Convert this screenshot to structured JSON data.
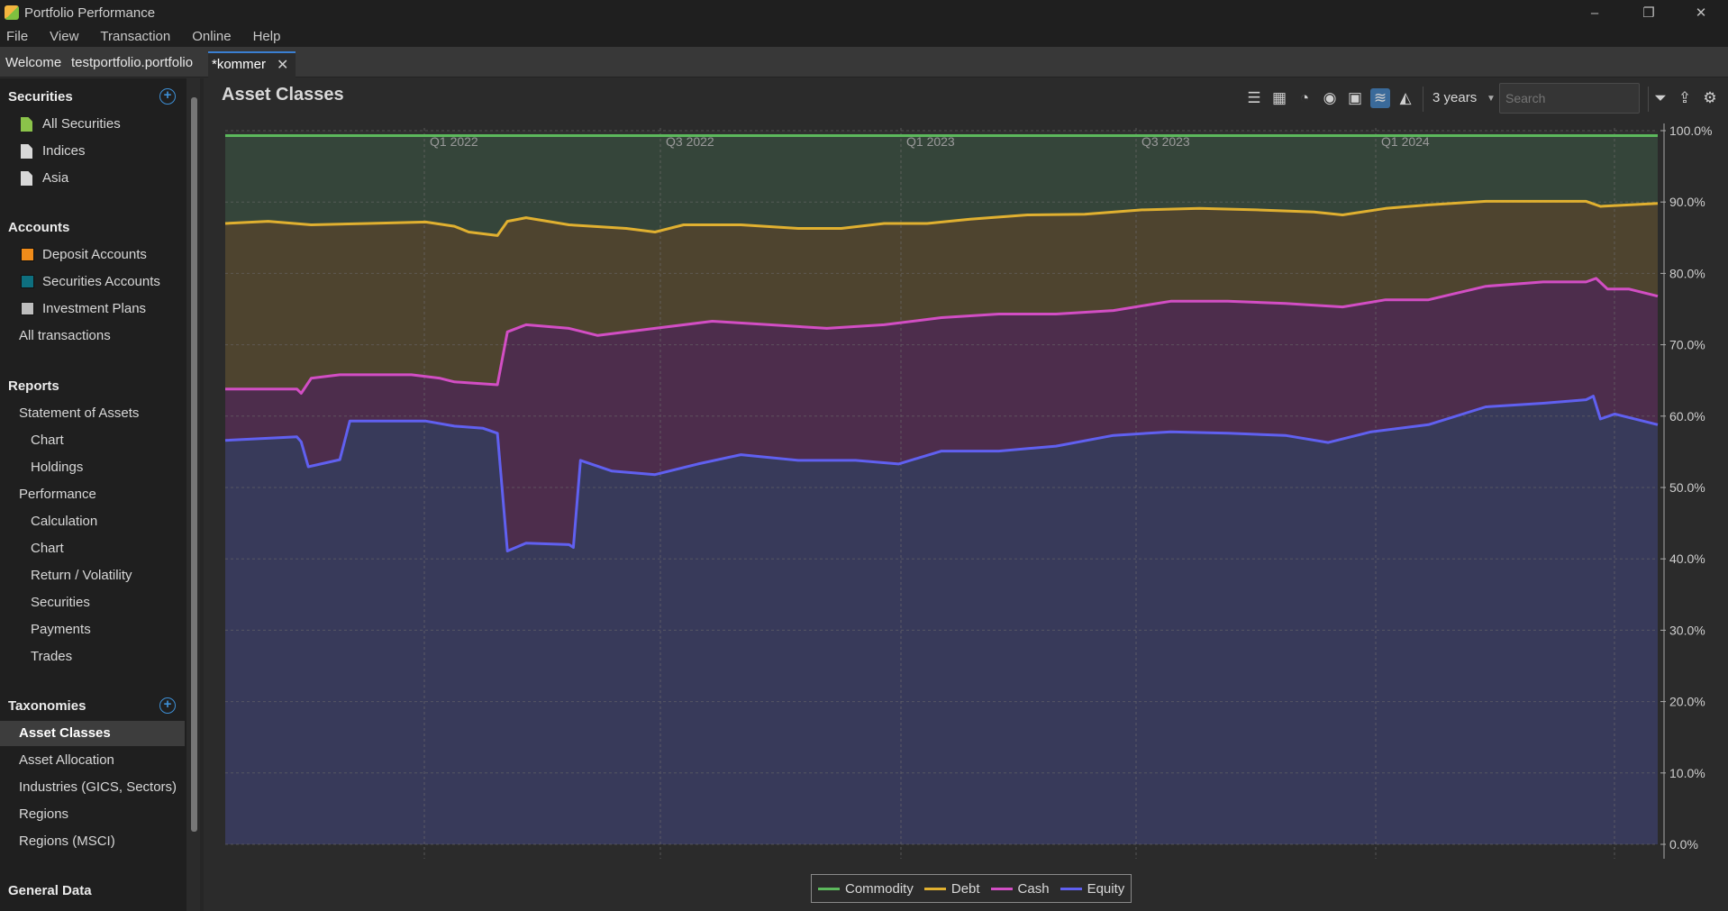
{
  "window": {
    "title": "Portfolio Performance",
    "controls": [
      "–",
      "❐",
      "✕"
    ]
  },
  "menu": [
    "File",
    "View",
    "Transaction",
    "Online",
    "Help"
  ],
  "tabs": {
    "welcome": "Welcome",
    "portfolio": "testportfolio.portfolio",
    "active": "*kommer"
  },
  "sidebar": {
    "securities_header": "Securities",
    "securities": [
      "All Securities",
      "Indices",
      "Asia"
    ],
    "accounts_header": "Accounts",
    "accounts": [
      "Deposit Accounts",
      "Securities Accounts",
      "Investment Plans"
    ],
    "account_colors": [
      "#f08c1a",
      "#0e6f7f",
      "#bdbdbd"
    ],
    "all_transactions": "All transactions",
    "reports_header": "Reports",
    "statement": "Statement of Assets",
    "statement_children": [
      "Chart",
      "Holdings"
    ],
    "performance": "Performance",
    "performance_children": [
      "Calculation",
      "Chart",
      "Return / Volatility",
      "Securities",
      "Payments",
      "Trades"
    ],
    "taxonomies_header": "Taxonomies",
    "taxonomies": [
      "Asset Classes",
      "Asset Allocation",
      "Industries (GICS, Sectors)",
      "Regions",
      "Regions (MSCI)"
    ],
    "general_header": "General Data"
  },
  "toolbar": {
    "title": "Asset Classes",
    "period": "3 years",
    "search_placeholder": "Search",
    "icons": [
      "list-icon",
      "treemap-icon",
      "pie-icon",
      "donut-icon",
      "grid-icon",
      "stacked-area-icon",
      "area-chart-icon",
      "filter-icon",
      "export-icon",
      "settings-icon"
    ]
  },
  "chart_data": {
    "type": "area",
    "stacked": true,
    "percent": true,
    "quarter_labels": [
      "Q1 2022",
      "Q3 2022",
      "Q1 2023",
      "Q3 2023",
      "Q1 2024"
    ],
    "y_ticks": [
      "100.0%",
      "90.0%",
      "80.0%",
      "70.0%",
      "60.0%",
      "50.0%",
      "40.0%",
      "30.0%",
      "20.0%",
      "10.0%",
      "0.0%"
    ],
    "ylim": [
      0,
      100
    ],
    "legend_position": "bottom",
    "grid": true,
    "colors": {
      "commodity": "#5cb85c",
      "debt": "#e0b030",
      "cash": "#d24ec4",
      "equity": "#6060f0"
    },
    "fills": {
      "commodity": "#35453a",
      "debt": "#4e442f",
      "cash": "#4d2d4c",
      "equity": "#383a5a"
    },
    "legend": [
      "Commodity",
      "Debt",
      "Cash",
      "Equity"
    ],
    "series": [
      {
        "name": "Commodity",
        "key": "commodity",
        "points": [
          [
            0,
            99.3
          ],
          [
            1,
            99.3
          ]
        ]
      },
      {
        "name": "Debt",
        "key": "debt",
        "points": [
          [
            0,
            87
          ],
          [
            0.03,
            87.3
          ],
          [
            0.06,
            86.8
          ],
          [
            0.1,
            87
          ],
          [
            0.14,
            87.2
          ],
          [
            0.16,
            86.6
          ],
          [
            0.17,
            85.8
          ],
          [
            0.19,
            85.3
          ],
          [
            0.197,
            87.3
          ],
          [
            0.21,
            87.8
          ],
          [
            0.24,
            86.8
          ],
          [
            0.28,
            86.3
          ],
          [
            0.3,
            85.8
          ],
          [
            0.32,
            86.8
          ],
          [
            0.36,
            86.8
          ],
          [
            0.4,
            86.3
          ],
          [
            0.43,
            86.3
          ],
          [
            0.46,
            87
          ],
          [
            0.49,
            87
          ],
          [
            0.52,
            87.6
          ],
          [
            0.56,
            88.2
          ],
          [
            0.6,
            88.3
          ],
          [
            0.64,
            88.9
          ],
          [
            0.68,
            89.1
          ],
          [
            0.72,
            88.9
          ],
          [
            0.76,
            88.6
          ],
          [
            0.78,
            88.2
          ],
          [
            0.81,
            89.1
          ],
          [
            0.84,
            89.6
          ],
          [
            0.88,
            90.1
          ],
          [
            0.92,
            90.1
          ],
          [
            0.95,
            90.1
          ],
          [
            0.96,
            89.4
          ],
          [
            1,
            89.8
          ]
        ]
      },
      {
        "name": "Cash",
        "key": "cash",
        "points": [
          [
            0,
            63.8
          ],
          [
            0.05,
            63.8
          ],
          [
            0.053,
            63.2
          ],
          [
            0.06,
            65.3
          ],
          [
            0.08,
            65.8
          ],
          [
            0.13,
            65.8
          ],
          [
            0.15,
            65.3
          ],
          [
            0.16,
            64.8
          ],
          [
            0.19,
            64.4
          ],
          [
            0.197,
            71.8
          ],
          [
            0.21,
            72.8
          ],
          [
            0.24,
            72.3
          ],
          [
            0.26,
            71.3
          ],
          [
            0.3,
            72.3
          ],
          [
            0.34,
            73.3
          ],
          [
            0.38,
            72.8
          ],
          [
            0.42,
            72.3
          ],
          [
            0.46,
            72.8
          ],
          [
            0.5,
            73.8
          ],
          [
            0.54,
            74.3
          ],
          [
            0.58,
            74.3
          ],
          [
            0.62,
            74.8
          ],
          [
            0.66,
            76.1
          ],
          [
            0.7,
            76.1
          ],
          [
            0.74,
            75.8
          ],
          [
            0.78,
            75.3
          ],
          [
            0.81,
            76.3
          ],
          [
            0.84,
            76.3
          ],
          [
            0.88,
            78.2
          ],
          [
            0.92,
            78.8
          ],
          [
            0.95,
            78.8
          ],
          [
            0.957,
            79.3
          ],
          [
            0.965,
            77.8
          ],
          [
            0.98,
            77.8
          ],
          [
            1,
            76.8
          ]
        ]
      },
      {
        "name": "Equity",
        "key": "equity",
        "points": [
          [
            0,
            56.6
          ],
          [
            0.05,
            57.1
          ],
          [
            0.053,
            56.4
          ],
          [
            0.058,
            52.9
          ],
          [
            0.08,
            53.9
          ],
          [
            0.087,
            59.3
          ],
          [
            0.11,
            59.3
          ],
          [
            0.14,
            59.3
          ],
          [
            0.16,
            58.6
          ],
          [
            0.18,
            58.3
          ],
          [
            0.19,
            57.6
          ],
          [
            0.197,
            41.1
          ],
          [
            0.21,
            42.2
          ],
          [
            0.24,
            42.0
          ],
          [
            0.243,
            41.6
          ],
          [
            0.248,
            53.8
          ],
          [
            0.27,
            52.3
          ],
          [
            0.3,
            51.8
          ],
          [
            0.33,
            53.3
          ],
          [
            0.36,
            54.6
          ],
          [
            0.4,
            53.8
          ],
          [
            0.44,
            53.8
          ],
          [
            0.47,
            53.3
          ],
          [
            0.5,
            55.1
          ],
          [
            0.54,
            55.1
          ],
          [
            0.58,
            55.8
          ],
          [
            0.62,
            57.3
          ],
          [
            0.66,
            57.8
          ],
          [
            0.7,
            57.6
          ],
          [
            0.74,
            57.3
          ],
          [
            0.77,
            56.3
          ],
          [
            0.8,
            57.8
          ],
          [
            0.84,
            58.8
          ],
          [
            0.88,
            61.3
          ],
          [
            0.92,
            61.8
          ],
          [
            0.95,
            62.3
          ],
          [
            0.955,
            62.8
          ],
          [
            0.96,
            59.6
          ],
          [
            0.97,
            60.3
          ],
          [
            1,
            58.8
          ]
        ]
      }
    ]
  }
}
